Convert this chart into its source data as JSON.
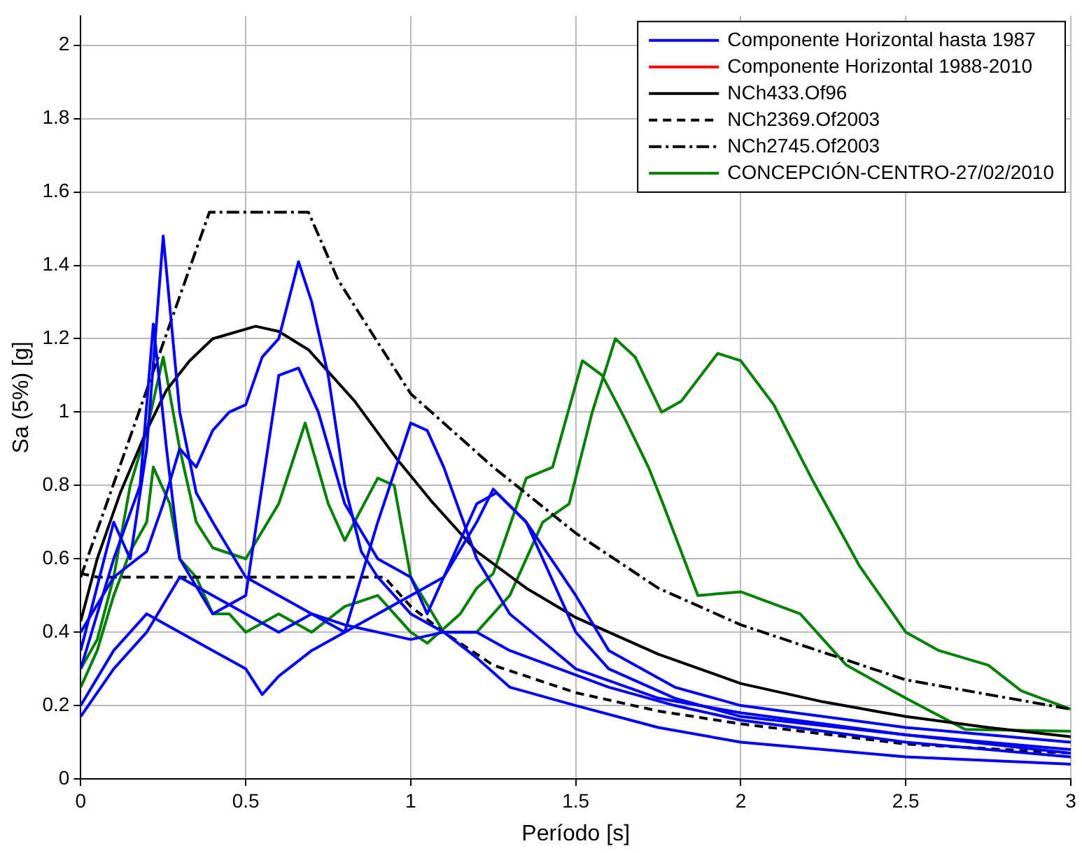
{
  "chart_data": {
    "type": "line",
    "xlabel": "Período [s]",
    "ylabel": "Sa (5%) [g]",
    "xlim": [
      0,
      3
    ],
    "ylim": [
      0,
      2.08
    ],
    "xticks": [
      0,
      0.5,
      1,
      1.5,
      2,
      2.5,
      3
    ],
    "yticks": [
      0,
      0.2,
      0.4,
      0.6,
      0.8,
      1,
      1.2,
      1.4,
      1.6,
      1.8,
      2
    ],
    "grid": true,
    "legend": "top right",
    "series": [
      {
        "name": "Componente Horizontal hasta 1987",
        "color": "#0000ff",
        "x": [
          0,
          0.1,
          0.15,
          0.2,
          0.25,
          0.3,
          0.35,
          0.4,
          0.5,
          0.6,
          0.7,
          0.8,
          0.9,
          1.0,
          1.1,
          1.2,
          1.3,
          1.5,
          1.75,
          2,
          2.5,
          3
        ],
        "values": [
          0.35,
          0.7,
          0.6,
          0.9,
          1.48,
          1.0,
          0.78,
          0.7,
          0.55,
          0.5,
          0.45,
          0.42,
          0.4,
          0.38,
          0.4,
          0.33,
          0.25,
          0.2,
          0.14,
          0.1,
          0.06,
          0.04
        ]
      },
      {
        "color": "#0000ff",
        "x": [
          0,
          0.1,
          0.2,
          0.25,
          0.3,
          0.35,
          0.4,
          0.45,
          0.5,
          0.55,
          0.6,
          0.66,
          0.7,
          0.75,
          0.8,
          0.85,
          0.9,
          1.0,
          1.1,
          1.2,
          1.3,
          1.45,
          1.6,
          1.8,
          2,
          2.5,
          3
        ],
        "values": [
          0.4,
          0.55,
          0.62,
          0.75,
          0.9,
          0.85,
          0.95,
          1.0,
          1.02,
          1.15,
          1.2,
          1.41,
          1.3,
          1.1,
          0.8,
          0.62,
          0.55,
          0.45,
          0.4,
          0.4,
          0.35,
          0.3,
          0.25,
          0.2,
          0.16,
          0.1,
          0.06
        ]
      },
      {
        "color": "#0000ff",
        "x": [
          0,
          0.1,
          0.18,
          0.22,
          0.26,
          0.3,
          0.4,
          0.5,
          0.55,
          0.6,
          0.66,
          0.72,
          0.8,
          0.9,
          1.0,
          1.05,
          1.1,
          1.2,
          1.26,
          1.35,
          1.5,
          1.6,
          1.8,
          2,
          2.5,
          3
        ],
        "values": [
          0.3,
          0.6,
          0.8,
          1.24,
          0.9,
          0.6,
          0.45,
          0.5,
          0.8,
          1.1,
          1.12,
          1.0,
          0.75,
          0.6,
          0.55,
          0.45,
          0.55,
          0.75,
          0.78,
          0.7,
          0.4,
          0.3,
          0.22,
          0.17,
          0.12,
          0.08
        ]
      },
      {
        "color": "#0000ff",
        "x": [
          0,
          0.1,
          0.2,
          0.3,
          0.4,
          0.5,
          0.55,
          0.6,
          0.7,
          0.8,
          0.9,
          1.0,
          1.05,
          1.1,
          1.2,
          1.3,
          1.5,
          1.75,
          2,
          2.5,
          3
        ],
        "values": [
          0.2,
          0.35,
          0.45,
          0.4,
          0.35,
          0.3,
          0.23,
          0.28,
          0.35,
          0.4,
          0.7,
          0.97,
          0.95,
          0.85,
          0.6,
          0.45,
          0.3,
          0.22,
          0.18,
          0.12,
          0.07
        ]
      },
      {
        "color": "#0000ff",
        "x": [
          0,
          0.1,
          0.2,
          0.3,
          0.4,
          0.5,
          0.6,
          0.7,
          0.8,
          0.9,
          1.0,
          1.1,
          1.2,
          1.25,
          1.35,
          1.5,
          1.6,
          1.8,
          2,
          2.5,
          3
        ],
        "values": [
          0.17,
          0.3,
          0.4,
          0.55,
          0.5,
          0.45,
          0.4,
          0.45,
          0.4,
          0.45,
          0.5,
          0.55,
          0.7,
          0.79,
          0.7,
          0.5,
          0.35,
          0.25,
          0.2,
          0.14,
          0.1
        ]
      },
      {
        "name": "Componente Horizontal 1988-2010",
        "color": "#ff0000"
      },
      {
        "name": "NCh433.Of96",
        "color": "#000000",
        "x": [
          0,
          0.05,
          0.12,
          0.2,
          0.26,
          0.33,
          0.4,
          0.53,
          0.6,
          0.69,
          0.83,
          0.96,
          1.06,
          1.2,
          1.35,
          1.5,
          1.75,
          2,
          2.25,
          2.5,
          2.75,
          3
        ],
        "values": [
          0.43,
          0.6,
          0.78,
          0.95,
          1.06,
          1.14,
          1.2,
          1.234,
          1.22,
          1.17,
          1.03,
          0.87,
          0.76,
          0.62,
          0.52,
          0.44,
          0.34,
          0.26,
          0.21,
          0.17,
          0.14,
          0.115
        ]
      },
      {
        "name": "NCh2369.Of2003",
        "color": "#000000",
        "line_style": "dashed",
        "x": [
          0,
          0.05,
          0.92,
          1.0,
          1.1,
          1.25,
          1.5,
          1.75,
          2,
          2.5,
          3
        ],
        "values": [
          0.56,
          0.55,
          0.55,
          0.47,
          0.4,
          0.31,
          0.235,
          0.185,
          0.15,
          0.095,
          0.07
        ]
      },
      {
        "name": "NCh2745.Of2003",
        "color": "#000000",
        "line_style": "dashdot",
        "x": [
          0,
          0.39,
          0.69,
          0.78,
          0.9,
          1.0,
          1.25,
          1.5,
          1.75,
          2,
          2.5,
          3
        ],
        "values": [
          0.55,
          1.545,
          1.545,
          1.36,
          1.19,
          1.05,
          0.85,
          0.67,
          0.52,
          0.42,
          0.27,
          0.19
        ]
      },
      {
        "name": "CONCEPCIÓN-CENTRO-27/02/2010",
        "color": "#008000",
        "x": [
          0,
          0.05,
          0.1,
          0.15,
          0.2,
          0.25,
          0.3,
          0.35,
          0.4,
          0.5,
          0.6,
          0.68,
          0.75,
          0.8,
          0.9,
          0.95,
          1.0,
          1.1,
          1.2,
          1.3,
          1.4,
          1.48,
          1.55,
          1.62,
          1.68,
          1.76,
          1.82,
          1.93,
          2.0,
          2.1,
          2.22,
          2.36,
          2.5,
          2.6,
          2.75,
          2.85,
          3
        ],
        "values": [
          0.3,
          0.38,
          0.55,
          0.8,
          0.95,
          1.15,
          0.9,
          0.7,
          0.63,
          0.6,
          0.75,
          0.97,
          0.75,
          0.65,
          0.82,
          0.8,
          0.55,
          0.4,
          0.4,
          0.5,
          0.7,
          0.75,
          1.0,
          1.2,
          1.15,
          1.0,
          1.03,
          1.16,
          1.14,
          1.02,
          0.81,
          0.58,
          0.4,
          0.35,
          0.31,
          0.24,
          0.19
        ]
      },
      {
        "color": "#008000",
        "x": [
          0,
          0.05,
          0.1,
          0.15,
          0.2,
          0.22,
          0.27,
          0.3,
          0.35,
          0.4,
          0.45,
          0.5,
          0.6,
          0.7,
          0.8,
          0.9,
          1.0,
          1.05,
          1.15,
          1.2,
          1.25,
          1.35,
          1.43,
          1.52,
          1.58,
          1.65,
          1.72,
          1.76,
          1.87,
          2.0,
          2.18,
          2.32,
          2.5,
          2.68,
          3
        ],
        "values": [
          0.25,
          0.35,
          0.5,
          0.62,
          0.7,
          0.85,
          0.75,
          0.6,
          0.55,
          0.45,
          0.45,
          0.4,
          0.45,
          0.4,
          0.47,
          0.5,
          0.4,
          0.37,
          0.45,
          0.52,
          0.56,
          0.82,
          0.85,
          1.14,
          1.1,
          0.98,
          0.85,
          0.76,
          0.5,
          0.51,
          0.45,
          0.31,
          0.22,
          0.135,
          0.13
        ]
      }
    ]
  }
}
